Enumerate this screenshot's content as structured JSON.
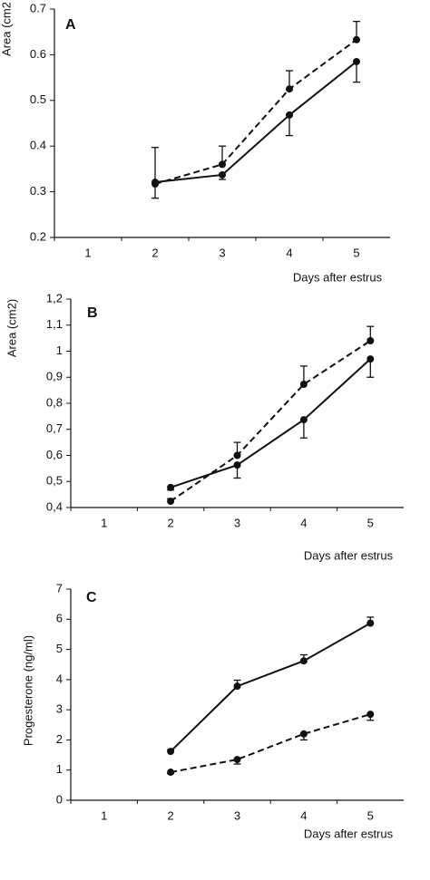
{
  "chart_data": [
    {
      "type": "line",
      "panel_label": "A",
      "y_label": "Area (cm2",
      "x_label": "Days after estrus",
      "categories": [
        "1",
        "2",
        "3",
        "4",
        "5"
      ],
      "ylim": [
        0.2,
        0.7
      ],
      "yticks": [
        0.2,
        0.3,
        0.4,
        0.5,
        0.6,
        0.7
      ],
      "series": [
        {
          "color": "#111111",
          "line_style": "dashed",
          "error_side": "upper",
          "values": [
            null,
            0.317,
            0.36,
            0.525,
            0.633
          ],
          "errors": [
            null,
            0.08,
            0.04,
            0.04,
            0.04
          ]
        },
        {
          "color": "#111111",
          "line_style": "solid",
          "error_side": "lower",
          "values": [
            null,
            0.321,
            0.337,
            0.468,
            0.585
          ],
          "errors": [
            null,
            0.035,
            0.01,
            0.045,
            0.045
          ]
        }
      ]
    },
    {
      "type": "line",
      "panel_label": "B",
      "y_label": "Area (cm2)",
      "x_label": "Days after estrus",
      "categories": [
        "1",
        "2",
        "3",
        "4",
        "5"
      ],
      "ylim": [
        0.4,
        1.2
      ],
      "yticks": [
        {
          "value": 0.4,
          "label": "0,4"
        },
        {
          "value": 0.5,
          "label": "0,5"
        },
        {
          "value": 0.6,
          "label": "0,6"
        },
        {
          "value": 0.7,
          "label": "0,7"
        },
        {
          "value": 0.8,
          "label": "0,8"
        },
        {
          "value": 0.9,
          "label": "0,9"
        },
        1,
        {
          "value": 1.1,
          "label": "1,1"
        },
        {
          "value": 1.2,
          "label": "1,2"
        }
      ],
      "series": [
        {
          "color": "#111111",
          "line_style": "dashed",
          "error_side": "upper",
          "values": [
            null,
            0.424,
            0.6,
            0.873,
            1.04
          ],
          "errors": [
            null,
            0.01,
            0.05,
            0.07,
            0.055
          ]
        },
        {
          "color": "#111111",
          "line_style": "solid",
          "error_side": "lower",
          "values": [
            null,
            0.477,
            0.563,
            0.737,
            0.97
          ],
          "errors": [
            null,
            0.01,
            0.05,
            0.07,
            0.07
          ]
        }
      ]
    },
    {
      "type": "line",
      "panel_label": "C",
      "y_label": "Progesterone (ng/ml)",
      "x_label": "Days after estrus",
      "categories": [
        "1",
        "2",
        "3",
        "4",
        "5"
      ],
      "ylim": [
        0,
        7
      ],
      "yticks": [
        0,
        1,
        2,
        3,
        4,
        5,
        6,
        7
      ],
      "series": [
        {
          "color": "#111111",
          "line_style": "solid",
          "error_side": "upper",
          "values": [
            null,
            1.62,
            3.78,
            4.62,
            5.87
          ],
          "errors": [
            null,
            0.05,
            0.2,
            0.2,
            0.2
          ]
        },
        {
          "color": "#111111",
          "line_style": "dashed",
          "error_side": "lower",
          "values": [
            null,
            0.93,
            1.35,
            2.2,
            2.85
          ],
          "errors": [
            null,
            0.05,
            0.15,
            0.2,
            0.2
          ]
        }
      ]
    }
  ]
}
